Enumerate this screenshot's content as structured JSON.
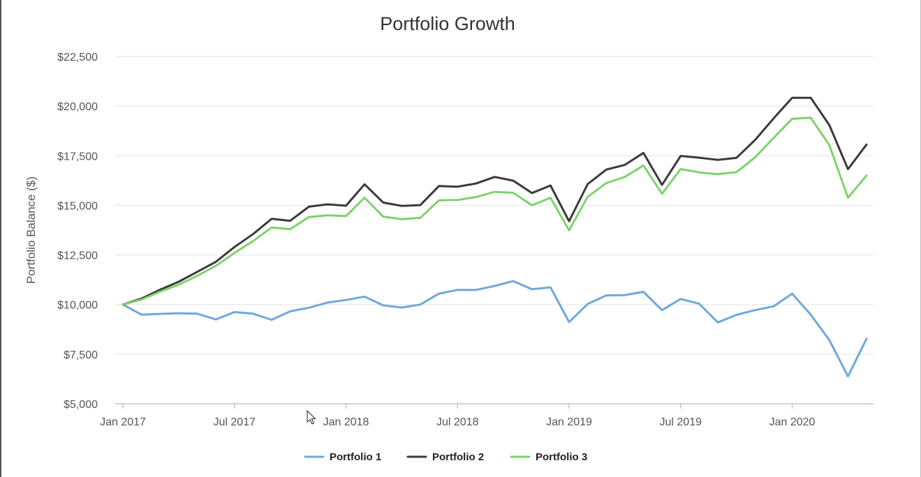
{
  "chart_data": {
    "type": "line",
    "title": "Portfolio Growth",
    "xlabel": "",
    "ylabel": "Portfolio Balance ($)",
    "ylim": [
      5000,
      22500
    ],
    "yticks": [
      5000,
      7500,
      10000,
      12500,
      15000,
      17500,
      20000,
      22500
    ],
    "ytick_labels": [
      "$5,000",
      "$7,500",
      "$10,000",
      "$12,500",
      "$15,000",
      "$17,500",
      "$20,000",
      "$22,500"
    ],
    "xlim": [
      "2017-01",
      "2020-05"
    ],
    "xticks": [
      "2017-01",
      "2017-07",
      "2018-01",
      "2018-07",
      "2019-01",
      "2019-07",
      "2020-01"
    ],
    "xtick_labels": [
      "Jan 2017",
      "Jul 2017",
      "Jan 2018",
      "Jul 2018",
      "Jan 2019",
      "Jul 2019",
      "Jan 2020"
    ],
    "x": [
      "2017-01",
      "2017-02",
      "2017-03",
      "2017-04",
      "2017-05",
      "2017-06",
      "2017-07",
      "2017-08",
      "2017-09",
      "2017-10",
      "2017-11",
      "2017-12",
      "2018-01",
      "2018-02",
      "2018-03",
      "2018-04",
      "2018-05",
      "2018-06",
      "2018-07",
      "2018-08",
      "2018-09",
      "2018-10",
      "2018-11",
      "2018-12",
      "2019-01",
      "2019-02",
      "2019-03",
      "2019-04",
      "2019-05",
      "2019-06",
      "2019-07",
      "2019-08",
      "2019-09",
      "2019-10",
      "2019-11",
      "2019-12",
      "2020-01",
      "2020-02",
      "2020-03",
      "2020-04",
      "2020-05"
    ],
    "grid": true,
    "legend_position": "bottom",
    "series": [
      {
        "name": "Portfolio 1",
        "color": "#6fa8dc",
        "values": [
          10000,
          9490,
          9530,
          9560,
          9540,
          9250,
          9620,
          9540,
          9230,
          9660,
          9840,
          10100,
          10230,
          10400,
          9960,
          9850,
          10000,
          10550,
          10740,
          10740,
          10940,
          11180,
          10770,
          10870,
          9120,
          10030,
          10460,
          10480,
          10640,
          9720,
          10280,
          10040,
          9100,
          9480,
          9720,
          9910,
          10550,
          9490,
          8210,
          6380,
          8280
        ]
      },
      {
        "name": "Portfolio 2",
        "color": "#3a3a3a",
        "values": [
          10000,
          10300,
          10750,
          11150,
          11650,
          12150,
          12900,
          13550,
          14320,
          14220,
          14930,
          15050,
          14980,
          16060,
          15140,
          14970,
          15010,
          15970,
          15940,
          16100,
          16430,
          16240,
          15620,
          16000,
          14200,
          16070,
          16800,
          17040,
          17640,
          16030,
          17490,
          17400,
          17290,
          17390,
          18290,
          19380,
          20420,
          20420,
          19040,
          16820,
          18060
        ]
      },
      {
        "name": "Portfolio 3",
        "color": "#7fd16f",
        "values": [
          10000,
          10250,
          10650,
          11000,
          11450,
          11950,
          12600,
          13200,
          13880,
          13800,
          14410,
          14500,
          14460,
          15380,
          14430,
          14300,
          14370,
          15250,
          15270,
          15420,
          15680,
          15630,
          15000,
          15380,
          13740,
          15430,
          16120,
          16430,
          17010,
          15580,
          16830,
          16660,
          16570,
          16670,
          17410,
          18400,
          19360,
          19410,
          18030,
          15380,
          16500
        ]
      }
    ]
  }
}
